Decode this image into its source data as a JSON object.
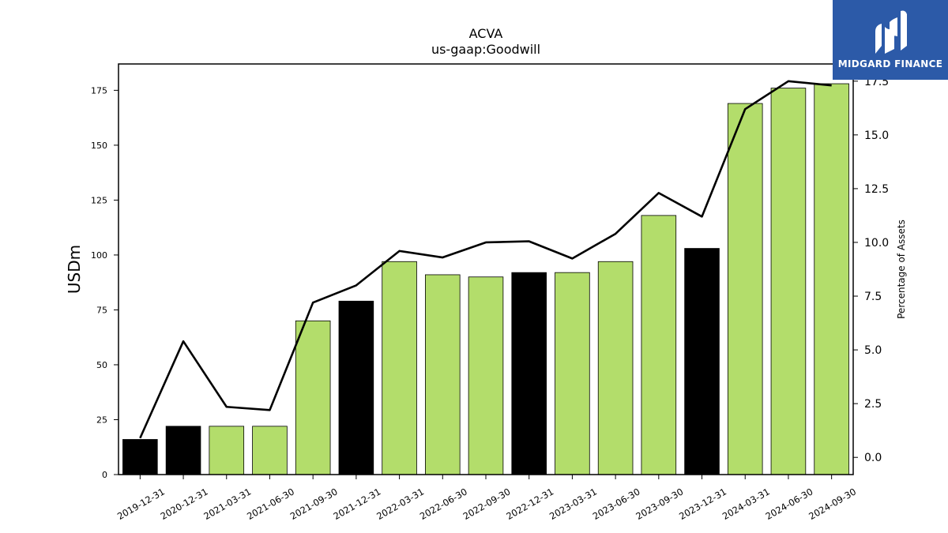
{
  "chart_data": {
    "type": "bar",
    "title": "ACVA",
    "subtitle": "us-gaap:Goodwill",
    "ylabel": "USDm",
    "y2label": "Percentage of Assets",
    "categories": [
      "2019-12-31",
      "2020-12-31",
      "2021-03-31",
      "2021-06-30",
      "2021-09-30",
      "2021-12-31",
      "2022-03-31",
      "2022-06-30",
      "2022-09-30",
      "2022-12-31",
      "2023-03-31",
      "2023-06-30",
      "2023-09-30",
      "2023-12-31",
      "2024-03-31",
      "2024-06-30",
      "2024-09-30"
    ],
    "series": [
      {
        "type": "bar",
        "values": [
          16,
          22,
          22,
          22,
          70,
          79,
          97,
          91,
          90,
          92,
          92,
          97,
          118,
          103,
          169,
          176,
          178
        ],
        "colors": [
          "#000000",
          "#000000",
          "#b3dd6b",
          "#b3dd6b",
          "#b3dd6b",
          "#000000",
          "#b3dd6b",
          "#b3dd6b",
          "#b3dd6b",
          "#000000",
          "#b3dd6b",
          "#b3dd6b",
          "#b3dd6b",
          "#000000",
          "#b3dd6b",
          "#b3dd6b",
          "#b3dd6b"
        ]
      },
      {
        "type": "line",
        "axis": "right",
        "color": "#000000",
        "values": [
          0.9,
          5.4,
          2.35,
          2.2,
          7.2,
          8.0,
          9.6,
          9.3,
          10.0,
          10.05,
          9.25,
          10.4,
          12.3,
          11.2,
          16.2,
          17.5,
          17.3
        ]
      }
    ],
    "ylim": [
      0,
      187
    ],
    "y_ticks": [
      0,
      25,
      50,
      75,
      100,
      125,
      150,
      175
    ],
    "y2lim": [
      -0.8,
      18.3
    ],
    "y2_ticks": [
      "0.0",
      "2.5",
      "5.0",
      "7.5",
      "10.0",
      "12.5",
      "15.0",
      "17.5"
    ],
    "grid": false,
    "legend": "none"
  },
  "logo": {
    "text": "MIDGARD FINANCE",
    "color": "#2c5aa8"
  }
}
